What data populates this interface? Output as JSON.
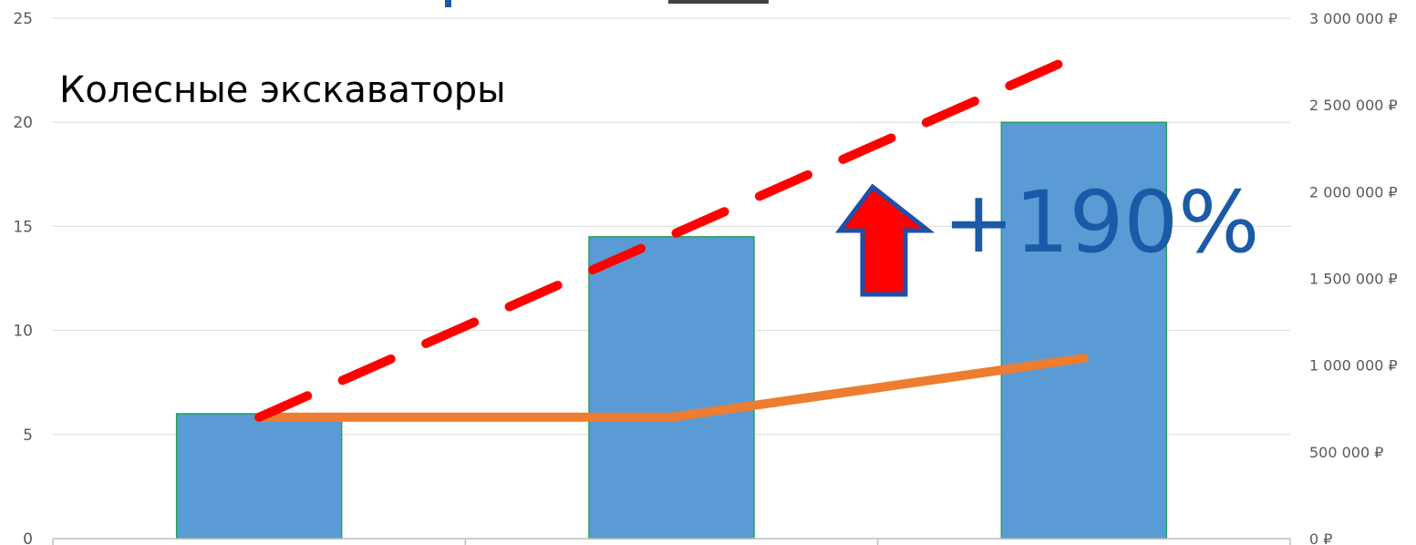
{
  "chart_data": {
    "type": "bar",
    "title": "Колесные экскаваторы",
    "categories": [
      "",
      "",
      ""
    ],
    "series": [
      {
        "type": "bar",
        "axis": "left",
        "values": [
          6,
          14.5,
          20
        ],
        "color": "#5b9bd5",
        "border_color": "#21a356"
      },
      {
        "type": "line",
        "axis": "right",
        "values": [
          700000,
          700000,
          1040000
        ],
        "color": "#ed7d31"
      },
      {
        "type": "line",
        "axis": "right",
        "style": "dashed",
        "values": [
          700000,
          1750000,
          2800000
        ],
        "color": "#ff0000"
      }
    ],
    "y_left": {
      "ticks": [
        0,
        5,
        10,
        15,
        20,
        25
      ],
      "tick_labels": [
        "0",
        "5",
        "10",
        "15",
        "20",
        "25"
      ],
      "ylim": [
        0,
        25
      ]
    },
    "y_right": {
      "ticks": [
        0,
        500000,
        1000000,
        1500000,
        2000000,
        2500000,
        3000000
      ],
      "tick_labels": [
        "0 ₽",
        "500 000 ₽",
        "1 000 000 ₽",
        "1 500 000 ₽",
        "2 000 000 ₽",
        "2 500 000 ₽",
        "3 000 000 ₽"
      ],
      "ylim": [
        0,
        3000000
      ]
    },
    "grid": true,
    "annotation": {
      "text": "+190%",
      "icon": "up-arrow-icon",
      "icon_color": "#ff0000",
      "icon_border": "#1f4fa8",
      "text_color": "#1a5aa6"
    }
  }
}
